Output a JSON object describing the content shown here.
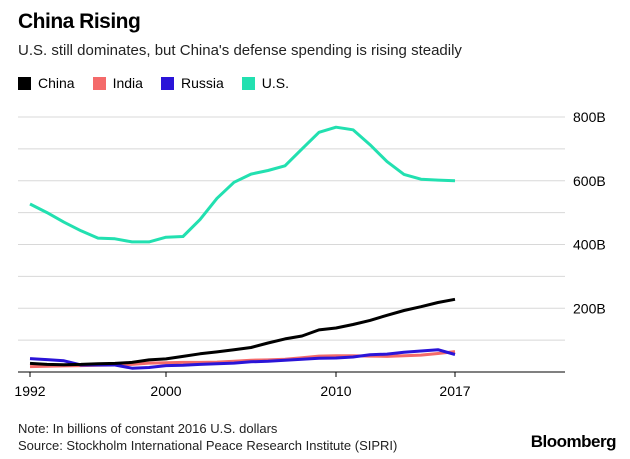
{
  "title": "China Rising",
  "subtitle": "U.S. still dominates, but China's defense spending is rising steadily",
  "note": "Note: In billions of constant 2016 U.S. dollars",
  "source": "Source: Stockholm International Peace Research Institute (SIPRI)",
  "logo": "Bloomberg",
  "chart_data": {
    "type": "line",
    "title": "China Rising",
    "xlabel": "",
    "ylabel": "",
    "x": [
      1992,
      1993,
      1994,
      1995,
      1996,
      1997,
      1998,
      1999,
      2000,
      2001,
      2002,
      2003,
      2004,
      2005,
      2006,
      2007,
      2008,
      2009,
      2010,
      2011,
      2012,
      2013,
      2014,
      2015,
      2016,
      2017
    ],
    "xlim": [
      1992,
      2017
    ],
    "ylim": [
      0,
      800
    ],
    "x_ticks": [
      "1992",
      "2000",
      "2010",
      "2017"
    ],
    "y_ticks": [
      {
        "value": 200,
        "label": "200B"
      },
      {
        "value": 400,
        "label": "400B"
      },
      {
        "value": 600,
        "label": "600B"
      },
      {
        "value": 800,
        "label": "800B"
      }
    ],
    "grid_values": [
      100,
      200,
      300,
      400,
      500,
      600,
      700,
      800
    ],
    "grid": true,
    "legend_placement": "top-left",
    "series": [
      {
        "name": "China",
        "color": "#000000",
        "values": [
          27,
          24,
          23,
          24,
          26,
          27,
          30,
          38,
          41,
          49,
          57,
          63,
          70,
          77,
          91,
          104,
          113,
          132,
          138,
          149,
          162,
          178,
          193,
          205,
          218,
          228
        ]
      },
      {
        "name": "India",
        "color": "#f46a6a",
        "values": [
          17,
          18,
          19,
          20,
          21,
          22,
          24,
          28,
          29,
          30,
          30,
          31,
          34,
          37,
          38,
          40,
          45,
          50,
          51,
          51,
          50,
          49,
          51,
          53,
          58,
          64
        ]
      },
      {
        "name": "Russia",
        "color": "#2a14d8",
        "values": [
          42,
          39,
          35,
          22,
          22,
          22,
          12,
          14,
          20,
          21,
          24,
          26,
          28,
          32,
          34,
          37,
          40,
          43,
          44,
          47,
          54,
          56,
          62,
          66,
          70,
          55
        ]
      },
      {
        "name": "U.S.",
        "color": "#22e0b0",
        "values": [
          527,
          500,
          470,
          443,
          420,
          418,
          408,
          408,
          423,
          425,
          478,
          545,
          595,
          621,
          632,
          647,
          700,
          752,
          768,
          760,
          713,
          660,
          620,
          605,
          602,
          600
        ]
      }
    ]
  }
}
